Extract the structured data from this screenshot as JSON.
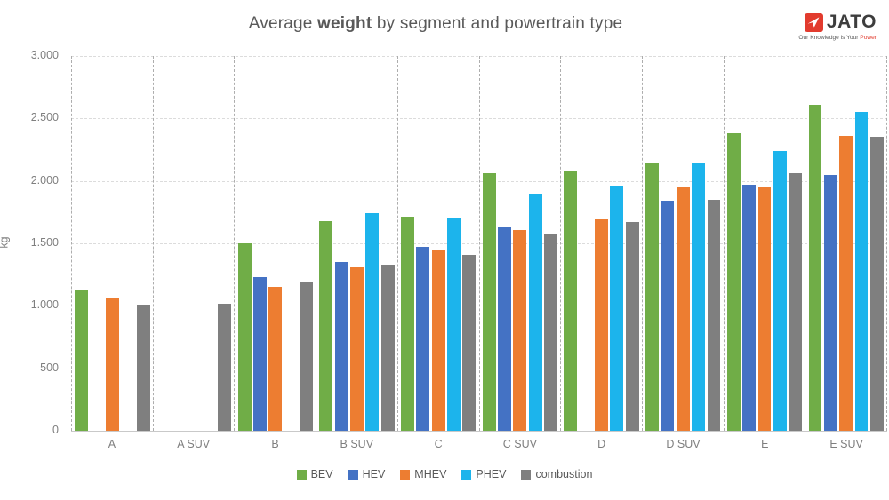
{
  "header": {
    "title_prefix": "Average ",
    "title_bold": "weight",
    "title_suffix": " by segment and powertrain type"
  },
  "logo": {
    "brand": "JATO",
    "tagline_prefix": "Our Knowledge is Your ",
    "tagline_accent": "Power",
    "brand_color": "#e23b2e"
  },
  "chart_data": {
    "type": "bar",
    "title": "Average weight by segment and powertrain type",
    "xlabel": "",
    "ylabel": "kg",
    "ylim": [
      0,
      3000
    ],
    "grid": "dashed",
    "legend_position": "bottom",
    "ytick_values": [
      3000,
      2500,
      2000,
      1500,
      1000,
      500,
      0
    ],
    "ytick_labels": [
      "3.000",
      "2.500",
      "2.000",
      "1.500",
      "1.000",
      "500",
      "0"
    ],
    "categories": [
      "A",
      "A SUV",
      "B",
      "B SUV",
      "C",
      "C SUV",
      "D",
      "D SUV",
      "E",
      "E SUV"
    ],
    "series": [
      {
        "name": "BEV",
        "color": "#70ad47",
        "values": [
          1130,
          null,
          1500,
          1680,
          1710,
          2060,
          2080,
          2150,
          2380,
          2610
        ]
      },
      {
        "name": "HEV",
        "color": "#4472c4",
        "values": [
          null,
          null,
          1230,
          1350,
          1470,
          1630,
          null,
          1840,
          1970,
          2050
        ]
      },
      {
        "name": "MHEV",
        "color": "#ed7d31",
        "values": [
          1070,
          null,
          1150,
          1310,
          1440,
          1610,
          1690,
          1950,
          1950,
          2360
        ]
      },
      {
        "name": "PHEV",
        "color": "#1cb4ec",
        "values": [
          null,
          null,
          null,
          1740,
          1700,
          1900,
          1960,
          2150,
          2240,
          2550
        ]
      },
      {
        "name": "combustion",
        "color": "#7f7f7f",
        "values": [
          1010,
          1020,
          1190,
          1330,
          1410,
          1580,
          1670,
          1850,
          2060,
          2350
        ]
      }
    ]
  }
}
